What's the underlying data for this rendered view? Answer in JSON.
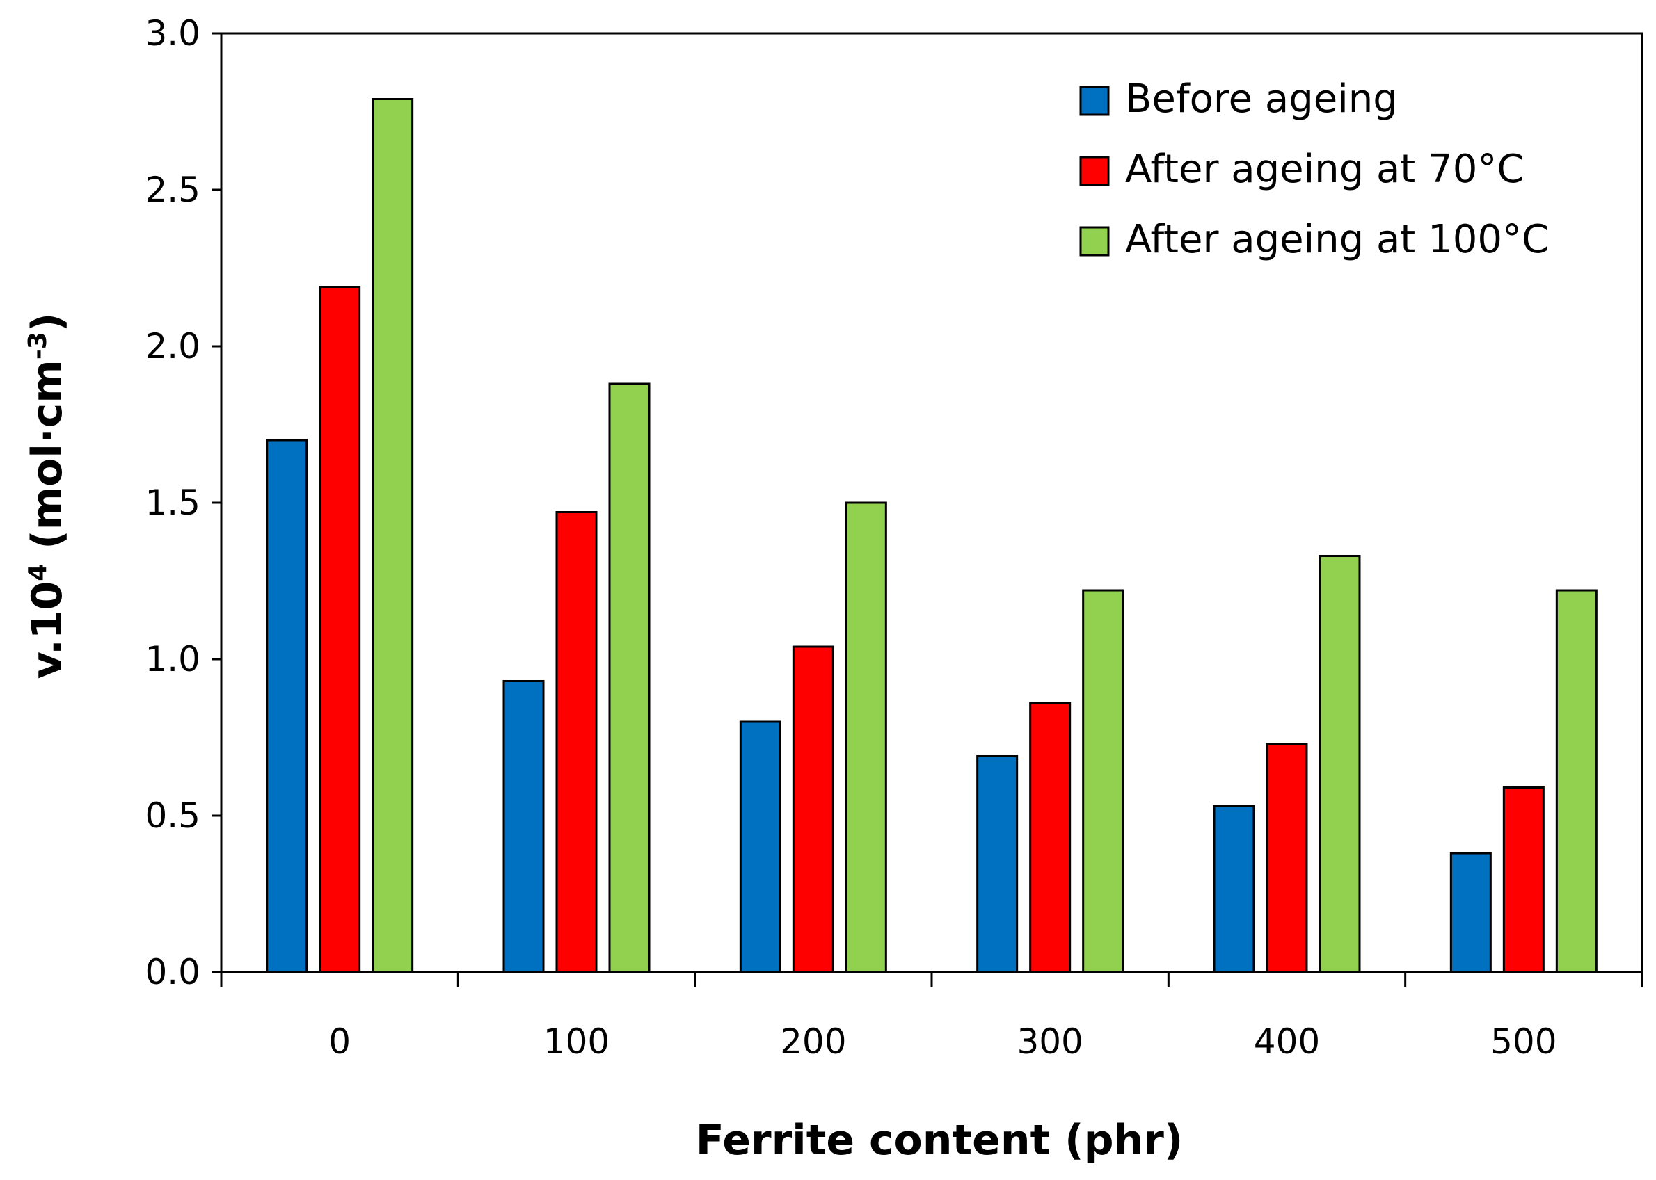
{
  "chart_data": {
    "type": "bar",
    "title": "",
    "xlabel": "Ferrite content (phr)",
    "ylabel_main": "v.10",
    "ylabel_exp": "4",
    "ylabel_unit": " (mol·cm",
    "ylabel_unit_exp": "-3",
    "ylabel_close": ")",
    "categories": [
      "0",
      "100",
      "200",
      "300",
      "400",
      "500"
    ],
    "ylim": [
      0,
      3.0
    ],
    "yticks": [
      "0.0",
      "0.5",
      "1.0",
      "1.5",
      "2.0",
      "2.5",
      "3.0"
    ],
    "grid": false,
    "legend_position": "top-right",
    "series": [
      {
        "name": "Before ageing",
        "color": "#0070C0",
        "values": [
          1.7,
          0.93,
          0.8,
          0.69,
          0.53,
          0.38
        ]
      },
      {
        "name": "After ageing at 70°C",
        "color": "#FF0000",
        "values": [
          2.19,
          1.47,
          1.04,
          0.86,
          0.73,
          0.59
        ]
      },
      {
        "name": "After ageing at 100°C",
        "color": "#92D050",
        "values": [
          2.79,
          1.88,
          1.5,
          1.22,
          1.33,
          1.22
        ]
      }
    ]
  }
}
